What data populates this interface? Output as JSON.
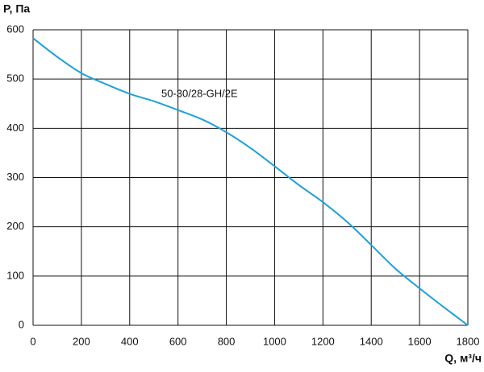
{
  "chart_data": {
    "type": "line",
    "y_label": "P, Па",
    "x_label": "Q, м³/ч",
    "annotation": "50-30/28-GH/2E",
    "x": [
      0,
      100,
      200,
      300,
      400,
      500,
      600,
      700,
      800,
      900,
      1000,
      1100,
      1200,
      1300,
      1400,
      1500,
      1600,
      1700,
      1800
    ],
    "series": [
      {
        "name": "50-30/28-GH/2E",
        "color": "#1ea0d6",
        "values": [
          583,
          545,
          512,
          490,
          470,
          455,
          437,
          418,
          392,
          360,
          323,
          285,
          250,
          210,
          163,
          115,
          75,
          37,
          0
        ]
      }
    ],
    "xlim": [
      0,
      1800
    ],
    "xticks": [
      0,
      200,
      400,
      600,
      800,
      1000,
      1200,
      1400,
      1600,
      1800
    ],
    "ylim": [
      0,
      600
    ],
    "yticks": [
      0,
      100,
      200,
      300,
      400,
      500,
      600
    ],
    "grid": true
  }
}
